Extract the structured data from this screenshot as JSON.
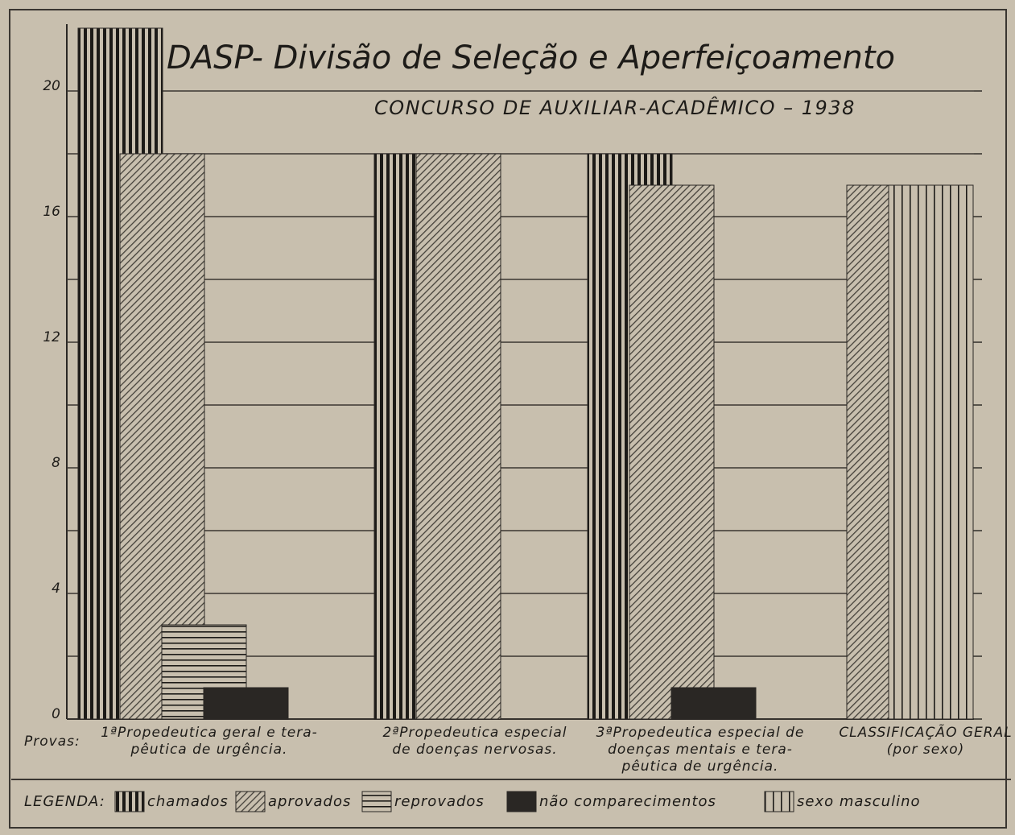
{
  "chart_data": {
    "type": "bar",
    "title": "DASP- Divisão de Seleção e Aperfeiçoamento",
    "subtitle": "CONCURSO DE AUXILIAR-ACADÊMICO – 1938",
    "x_label": "Provas:",
    "categories": [
      "1ªPropedeutica geral e tera-\npêutica de urgência.",
      "2ªPropedeutica especial\nde doenças nervosas.",
      "3ªPropedeutica especial de\ndoenças mentais e tera-\npêutica de urgência.",
      "CLASSIFICAÇÃO GERAL\n(por sexo)"
    ],
    "series": [
      {
        "name": "chamados",
        "color": "#1c1a17",
        "pattern": "vertical-thick",
        "values": [
          22,
          18,
          18,
          null
        ]
      },
      {
        "name": "aprovados",
        "color": "#2e2b26",
        "pattern": "diagonal",
        "values": [
          18,
          18,
          17,
          17
        ]
      },
      {
        "name": "reprovados",
        "color": "#1c1a17",
        "pattern": "horizontal",
        "values": [
          3,
          null,
          null,
          null
        ]
      },
      {
        "name": "não comparecimentos",
        "color": "#2a2724",
        "pattern": "solid",
        "values": [
          1,
          null,
          1,
          null
        ]
      },
      {
        "name": "sexo masculino",
        "color": "#1c1a17",
        "pattern": "vertical-thin",
        "values": [
          null,
          null,
          null,
          17
        ]
      }
    ],
    "legend_title": "LEGENDA:",
    "ylim": [
      0,
      22
    ],
    "yticks": [
      0,
      4,
      8,
      12,
      16,
      20
    ],
    "yticks_minor": [
      2,
      6,
      10,
      14,
      18
    ],
    "grid": true
  }
}
